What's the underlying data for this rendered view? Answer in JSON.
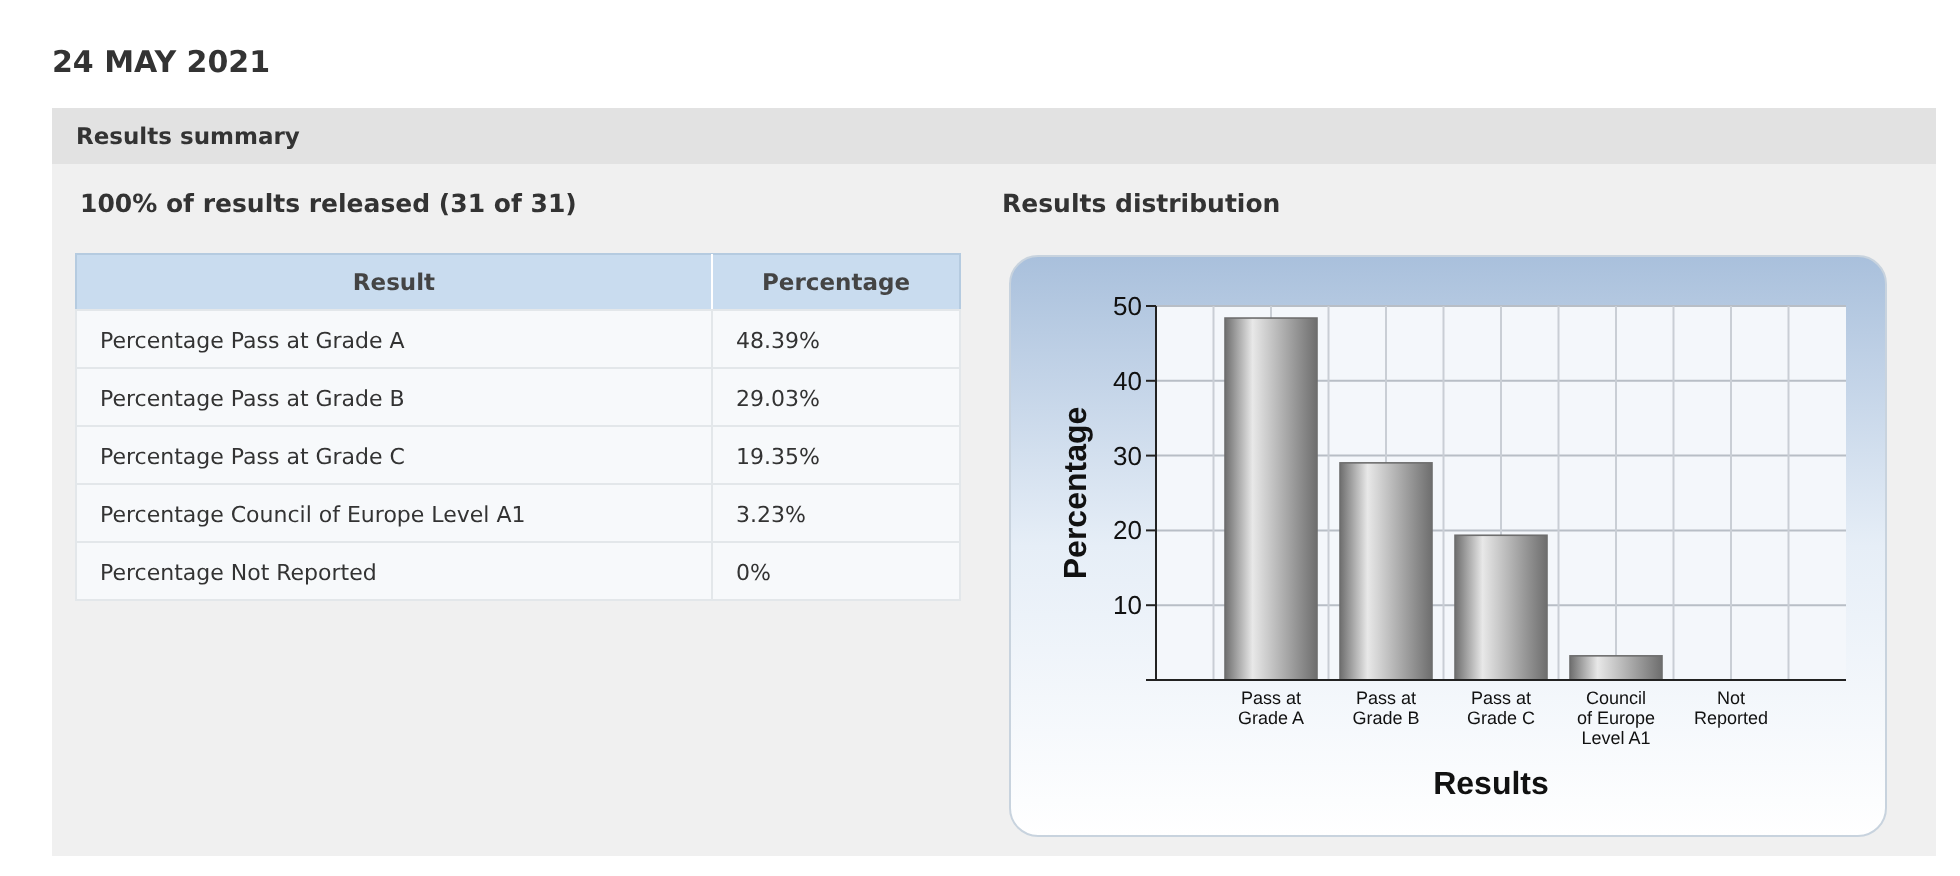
{
  "chart_data": [
    {
      "type": "other",
      "title": "24 MAY 2021",
      "subtitle": "Results summary",
      "annotations": [
        "100% of results released (31 of 31)",
        "Result",
        "Percentage",
        "Percentage Pass at Grade A",
        "48.39%",
        "Percentage Pass at Grade B",
        "29.03%",
        "Percentage Pass at Grade C",
        "19.35%",
        "Percentage Council of Europe Level A1",
        "3.23%",
        "Percentage Not Reported",
        "0%"
      ]
    },
    {
      "type": "bar",
      "title": "Results distribution",
      "xlabel": "Results",
      "ylabel": "Percentage",
      "categories": [
        "Pass at Grade A",
        "Pass at Grade B",
        "Pass at Grade C",
        "Council of Europe Level A1",
        "Not Reported"
      ],
      "values": [
        48.39,
        29.03,
        19.35,
        3.23,
        0
      ],
      "color": "#6e6e6e",
      "ylim": [
        0,
        50
      ],
      "yticks": [
        {
          "value": 0,
          "label": null
        },
        10,
        20,
        30,
        40,
        50
      ],
      "grid": true
    }
  ]
}
